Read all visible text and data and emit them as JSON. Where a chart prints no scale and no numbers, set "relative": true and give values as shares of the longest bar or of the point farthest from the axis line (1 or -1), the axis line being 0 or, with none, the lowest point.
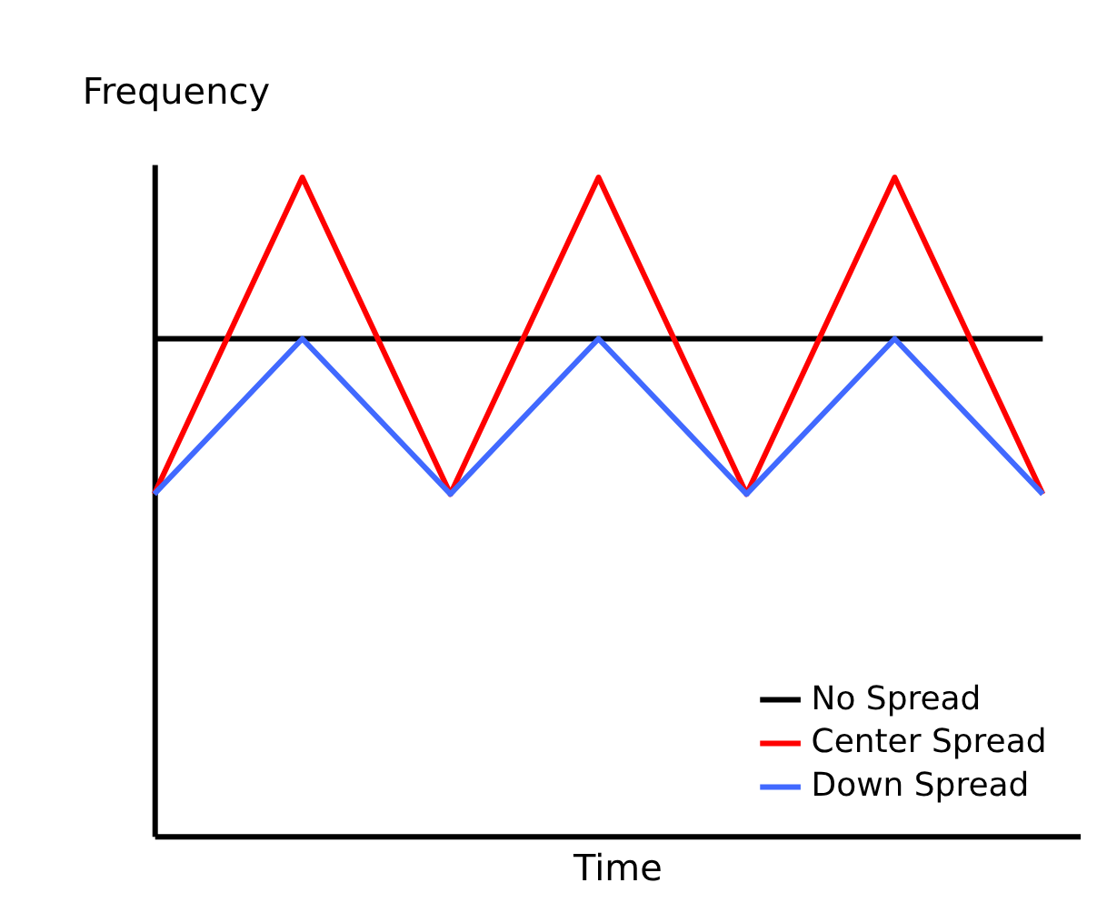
{
  "chart_data": {
    "type": "line",
    "xlabel": "Time",
    "ylabel": "Frequency",
    "relative": true,
    "categories": [
      null,
      null,
      null,
      null,
      null,
      null,
      null
    ],
    "series": [
      {
        "name": "No Spread",
        "color": "#000000",
        "values": [
          0.755,
          0.755,
          0.755,
          0.755,
          0.755,
          0.755,
          0.755
        ]
      },
      {
        "name": "Center Spread",
        "color": "#ff0000",
        "values": [
          0.519,
          1,
          0.519,
          1,
          0.519,
          1,
          0.519
        ]
      },
      {
        "name": "Down Spread",
        "color": "#4169ff",
        "values": [
          0.519,
          0.755,
          0.519,
          0.755,
          0.519,
          0.755,
          0.519
        ]
      }
    ],
    "legend": "bottom right",
    "grid": false,
    "tick_labels": false,
    "marker": "none",
    "line_style": "solid"
  }
}
